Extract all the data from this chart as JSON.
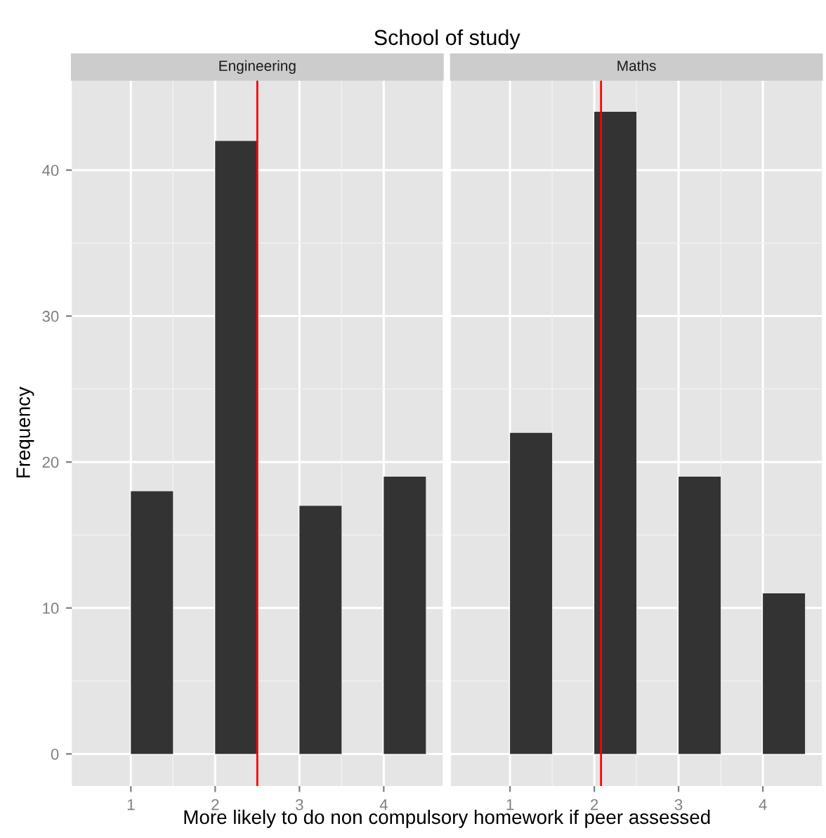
{
  "chart_data": [
    {
      "type": "histogram",
      "title": "Engineering",
      "annotations": [
        "School of study"
      ],
      "xlabel": "More likely to do non compulsory homework if peer assessed",
      "ylabel": "Frequency",
      "bins": [
        1,
        1.5,
        2,
        2.5,
        3,
        3.5,
        4,
        4.5
      ],
      "values": [
        18,
        0,
        42,
        0,
        17,
        0,
        19
      ],
      "color": "#333333",
      "xlim": [
        0.3,
        4.7
      ],
      "xticks": [
        1,
        2,
        3,
        4
      ],
      "ylim": [
        -2.2,
        46.2
      ],
      "yticks": [
        0,
        10,
        20,
        30,
        40
      ],
      "grid": true,
      "ref_lines": [
        {
          "axis": "x",
          "value": 2.5,
          "color": "#ff0000"
        }
      ]
    },
    {
      "type": "histogram",
      "title": "Maths",
      "bins": [
        1,
        1.5,
        2,
        2.5,
        3,
        3.5,
        4,
        4.5
      ],
      "values": [
        22,
        0,
        44,
        0,
        19,
        0,
        11
      ],
      "color": "#333333",
      "xlim": [
        0.3,
        4.7
      ],
      "xticks": [
        1,
        2,
        3,
        4
      ],
      "ylim": [
        -2.2,
        46.2
      ],
      "yticks": [
        0,
        10,
        20,
        30,
        40
      ],
      "grid": true,
      "tick_labels": "x",
      "ref_lines": [
        {
          "axis": "x",
          "value": 2.08,
          "color": "#ff0000"
        }
      ]
    }
  ]
}
